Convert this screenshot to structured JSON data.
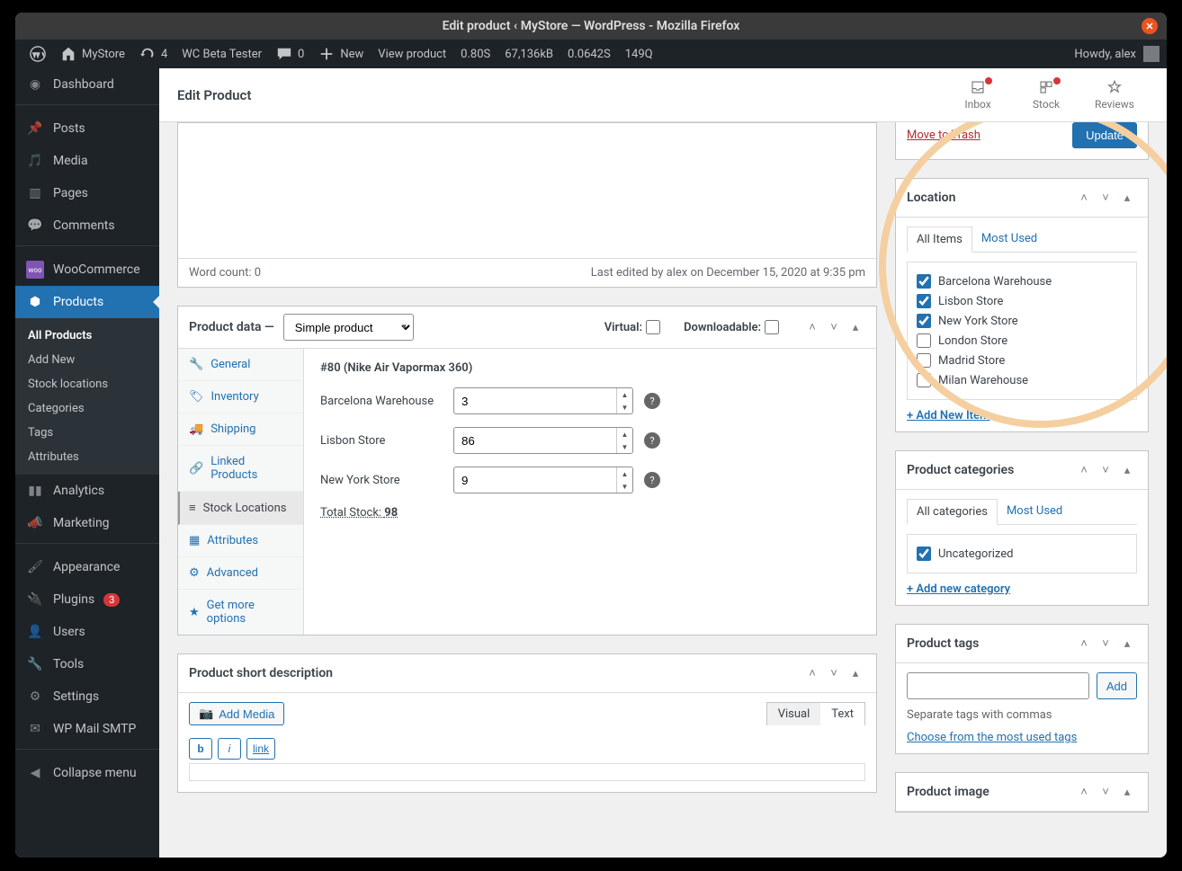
{
  "window": {
    "title": "Edit product ‹ MyStore — WordPress - Mozilla Firefox"
  },
  "adminbar": {
    "site": "MyStore",
    "updates": "4",
    "beta": "WC Beta Tester",
    "comments": "0",
    "new": "New",
    "view": "View product",
    "perf1": "0.80S",
    "perf2": "67,136kB",
    "perf3": "0.0642S",
    "perf4": "149Q",
    "howdy": "Howdy, alex"
  },
  "sidebar": {
    "dashboard": "Dashboard",
    "posts": "Posts",
    "media": "Media",
    "pages": "Pages",
    "comments": "Comments",
    "woocommerce": "WooCommerce",
    "products": "Products",
    "sub": {
      "all": "All Products",
      "add": "Add New",
      "stock": "Stock locations",
      "cat": "Categories",
      "tags": "Tags",
      "attr": "Attributes"
    },
    "analytics": "Analytics",
    "marketing": "Marketing",
    "appearance": "Appearance",
    "plugins": "Plugins",
    "plugins_badge": "3",
    "users": "Users",
    "tools": "Tools",
    "settings": "Settings",
    "wpmail": "WP Mail SMTP",
    "collapse": "Collapse menu"
  },
  "wcheader": {
    "title": "Edit Product",
    "inbox": "Inbox",
    "stock": "Stock",
    "reviews": "Reviews"
  },
  "editor": {
    "wordcount_label": "Word count: ",
    "wordcount": "0",
    "lastedit": "Last edited by alex on December 15, 2020 at 9:35 pm"
  },
  "productdata": {
    "label": "Product data —",
    "type": "Simple product",
    "virtual": "Virtual:",
    "downloadable": "Downloadable:",
    "tabs": {
      "general": "General",
      "inventory": "Inventory",
      "shipping": "Shipping",
      "linked": "Linked Products",
      "stockloc": "Stock Locations",
      "attributes": "Attributes",
      "advanced": "Advanced",
      "getmore": "Get more options"
    },
    "panel": {
      "heading": "#80 (Nike Air Vapormax 360)",
      "rows": [
        {
          "label": "Barcelona Warehouse",
          "value": "3"
        },
        {
          "label": "Lisbon Store",
          "value": "86"
        },
        {
          "label": "New York Store",
          "value": "9"
        }
      ],
      "total_label": "Total Stock: ",
      "total_value": "98"
    }
  },
  "shortdesc": {
    "title": "Product short description",
    "addmedia": "Add Media",
    "visual": "Visual",
    "text": "Text",
    "b": "b",
    "i": "i",
    "link": "link"
  },
  "publish": {
    "trash": "Move to Trash",
    "update": "Update"
  },
  "location": {
    "title": "Location",
    "taball": "All Items",
    "tabmost": "Most Used",
    "items": [
      {
        "label": "Barcelona Warehouse",
        "checked": true
      },
      {
        "label": "Lisbon Store",
        "checked": true
      },
      {
        "label": "New York Store",
        "checked": true
      },
      {
        "label": "London Store",
        "checked": false
      },
      {
        "label": "Madrid Store",
        "checked": false
      },
      {
        "label": "Milan Warehouse",
        "checked": false
      }
    ],
    "addnew": "+ Add New Item"
  },
  "categories": {
    "title": "Product categories",
    "taball": "All categories",
    "tabmost": "Most Used",
    "items": [
      {
        "label": "Uncategorized",
        "checked": true
      }
    ],
    "addnew": "+ Add new category"
  },
  "tags": {
    "title": "Product tags",
    "add": "Add",
    "hint": "Separate tags with commas",
    "choose": "Choose from the most used tags"
  },
  "image": {
    "title": "Product image"
  },
  "colors": {
    "accent": "#2271b1",
    "ring": "#f5cfa0"
  }
}
